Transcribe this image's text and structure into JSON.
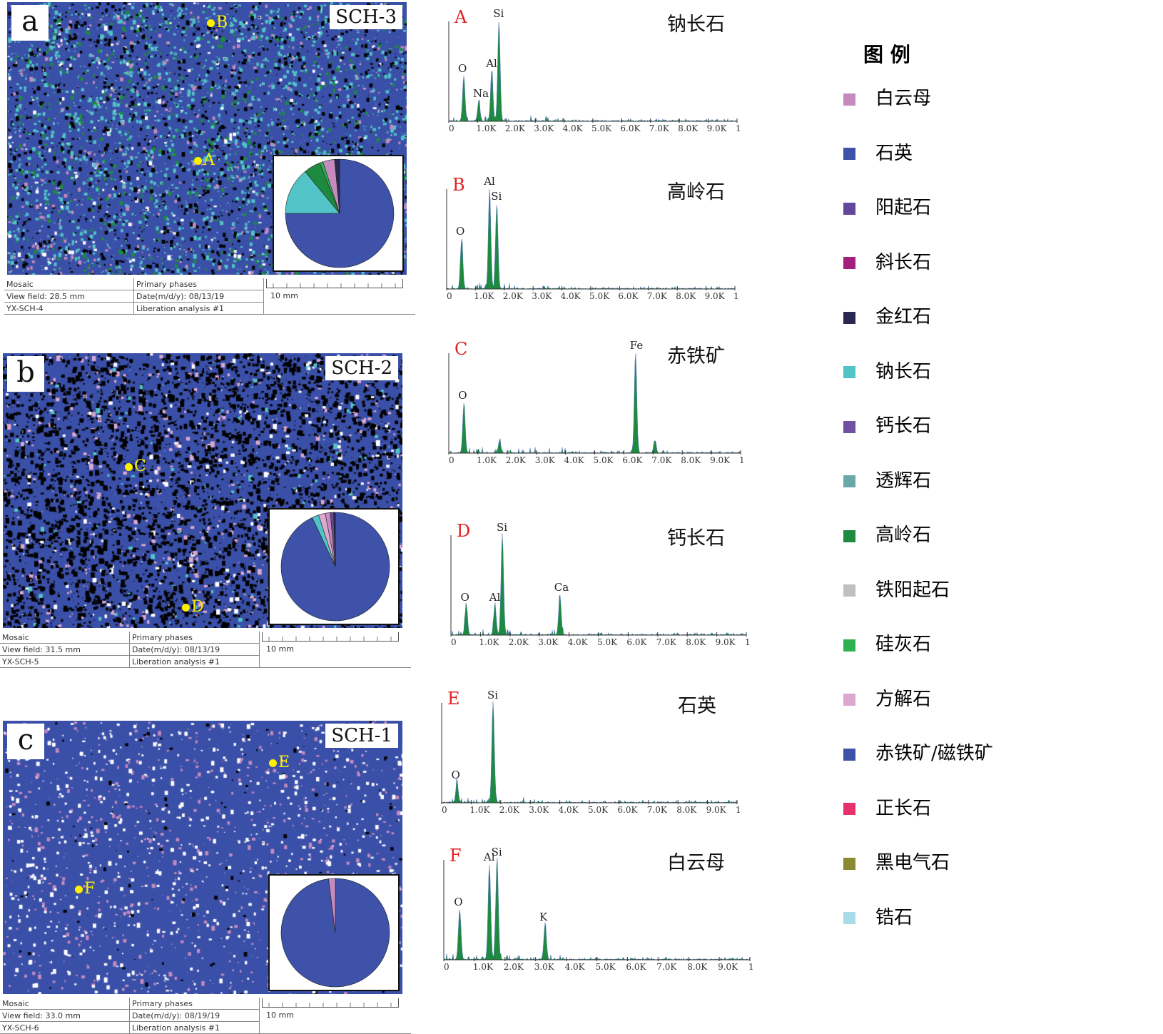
{
  "panels": [
    {
      "label": "a",
      "sample": "SCH-3",
      "points": [
        "B",
        "A"
      ],
      "info": {
        "mosaic": "Mosaic",
        "view_field": "View field: 28.5 mm",
        "id": "YX-SCH-4",
        "phases": "Primary phases",
        "date": "Date(m/d/y): 08/13/19",
        "analysis": "Liberation analysis #1",
        "scale": "10 mm"
      }
    },
    {
      "label": "b",
      "sample": "SCH-2",
      "points": [
        "C",
        "D"
      ],
      "info": {
        "mosaic": "Mosaic",
        "view_field": "View field: 31.5 mm",
        "id": "YX-SCH-5",
        "phases": "Primary phases",
        "date": "Date(m/d/y): 08/13/19",
        "analysis": "Liberation analysis #1",
        "scale": "10 mm"
      }
    },
    {
      "label": "c",
      "sample": "SCH-1",
      "points": [
        "E",
        "F"
      ],
      "info": {
        "mosaic": "Mosaic",
        "view_field": "View field: 33.0 mm",
        "id": "YX-SCH-6",
        "phases": "Primary phases",
        "date": "Date(m/d/y): 08/19/19",
        "analysis": "Liberation analysis #1",
        "scale": "10 mm"
      }
    }
  ],
  "legend": {
    "title": "图 例",
    "items": [
      {
        "name": "白云母",
        "color": "#c58bbf"
      },
      {
        "name": "石英",
        "color": "#3d52a8"
      },
      {
        "name": "阳起石",
        "color": "#62479c"
      },
      {
        "name": "斜长石",
        "color": "#a3207f"
      },
      {
        "name": "金红石",
        "color": "#2a2850"
      },
      {
        "name": "钠长石",
        "color": "#52c4c8"
      },
      {
        "name": "钙长石",
        "color": "#7050a0"
      },
      {
        "name": "透辉石",
        "color": "#6aa8a8"
      },
      {
        "name": "高岭石",
        "color": "#1e8a40"
      },
      {
        "name": "铁阳起石",
        "color": "#c0c0c0"
      },
      {
        "name": "硅灰石",
        "color": "#30b050"
      },
      {
        "name": "方解石",
        "color": "#dca8d0"
      },
      {
        "name": "赤铁矿/磁铁矿",
        "color": "#3d52a8"
      },
      {
        "name": "正长石",
        "color": "#e8306a"
      },
      {
        "name": "黑电气石",
        "color": "#8a8a30"
      },
      {
        "name": "锆石",
        "color": "#a8dce8"
      }
    ]
  },
  "chart_data": [
    {
      "type": "pie",
      "title": "SCH-3",
      "slices": [
        {
          "name": "石英",
          "value": 75
        },
        {
          "name": "钠长石",
          "value": 14
        },
        {
          "name": "高岭石",
          "value": 5
        },
        {
          "name": "硅灰石",
          "value": 1
        },
        {
          "name": "白云母",
          "value": 3.5
        },
        {
          "name": "金红石",
          "value": 1.5
        }
      ]
    },
    {
      "type": "pie",
      "title": "SCH-2",
      "slices": [
        {
          "name": "石英",
          "value": 93
        },
        {
          "name": "钠长石",
          "value": 2
        },
        {
          "name": "方解石",
          "value": 2
        },
        {
          "name": "白云母",
          "value": 1.5
        },
        {
          "name": "阳起石",
          "value": 1
        },
        {
          "name": "金红石",
          "value": 0.5
        }
      ]
    },
    {
      "type": "pie",
      "title": "SCH-1",
      "slices": [
        {
          "name": "石英",
          "value": 98
        },
        {
          "name": "白云母",
          "value": 2
        }
      ]
    },
    {
      "type": "area",
      "label": "A",
      "mineral": "钠长石",
      "xlim": [
        0,
        10
      ],
      "xticks": [
        "0",
        "1.0K",
        "2.0K",
        "3.0K",
        "4.0K",
        "5.0K",
        "6.0K",
        "7.0K",
        "8.0K",
        "9.0K",
        "1"
      ],
      "peaks": [
        {
          "el": "O",
          "keV": 0.52,
          "h": 0.45
        },
        {
          "el": "Na",
          "keV": 1.04,
          "h": 0.2
        },
        {
          "el": "Al",
          "keV": 1.49,
          "h": 0.5
        },
        {
          "el": "Si",
          "keV": 1.74,
          "h": 1.0
        }
      ]
    },
    {
      "type": "area",
      "label": "B",
      "mineral": "高岭石",
      "xlim": [
        0,
        10
      ],
      "xticks": [
        "0",
        "1.0K",
        "2.0K",
        "3.0K",
        "4.0K",
        "5.0K",
        "6.0K",
        "7.0K",
        "8.0K",
        "9.0K",
        "1"
      ],
      "peaks": [
        {
          "el": "O",
          "keV": 0.52,
          "h": 0.5
        },
        {
          "el": "Al",
          "keV": 1.49,
          "h": 1.0
        },
        {
          "el": "Si",
          "keV": 1.74,
          "h": 0.85
        }
      ]
    },
    {
      "type": "area",
      "label": "C",
      "mineral": "赤铁矿",
      "xlim": [
        0,
        10
      ],
      "xticks": [
        "0",
        "1.0K",
        "2.0K",
        "3.0K",
        "4.0K",
        "5.0K",
        "6.0K",
        "7.0K",
        "8.0K",
        "9.0K",
        "1"
      ],
      "peaks": [
        {
          "el": "O",
          "keV": 0.52,
          "h": 0.5
        },
        {
          "el": "",
          "keV": 1.74,
          "h": 0.12
        },
        {
          "el": "Fe",
          "keV": 6.4,
          "h": 1.0
        },
        {
          "el": "",
          "keV": 7.06,
          "h": 0.12
        }
      ]
    },
    {
      "type": "area",
      "label": "D",
      "mineral": "钙长石",
      "xlim": [
        0,
        10
      ],
      "xticks": [
        "0",
        "1.0K",
        "2.0K",
        "3.0K",
        "4.0K",
        "5.0K",
        "6.0K",
        "7.0K",
        "8.0K",
        "9.0K",
        "1"
      ],
      "peaks": [
        {
          "el": "O",
          "keV": 0.52,
          "h": 0.3
        },
        {
          "el": "Al",
          "keV": 1.49,
          "h": 0.3
        },
        {
          "el": "Si",
          "keV": 1.74,
          "h": 1.0
        },
        {
          "el": "Ca",
          "keV": 3.69,
          "h": 0.4
        }
      ]
    },
    {
      "type": "area",
      "label": "E",
      "mineral": "石英",
      "xlim": [
        0,
        10
      ],
      "xticks": [
        "0",
        "1.0K",
        "2.0K",
        "3.0K",
        "4.0K",
        "5.0K",
        "6.0K",
        "7.0K",
        "8.0K",
        "9.0K",
        "1"
      ],
      "peaks": [
        {
          "el": "O",
          "keV": 0.52,
          "h": 0.2
        },
        {
          "el": "Si",
          "keV": 1.74,
          "h": 1.0
        }
      ]
    },
    {
      "type": "area",
      "label": "F",
      "mineral": "白云母",
      "xlim": [
        0,
        10
      ],
      "xticks": [
        "0",
        "1.0K",
        "2.0K",
        "3.0K",
        "4.0K",
        "5.0K",
        "6.0K",
        "7.0K",
        "8.0K",
        "9.0K",
        "1"
      ],
      "peaks": [
        {
          "el": "O",
          "keV": 0.52,
          "h": 0.5
        },
        {
          "el": "Al",
          "keV": 1.49,
          "h": 0.95
        },
        {
          "el": "Si",
          "keV": 1.74,
          "h": 1.0
        },
        {
          "el": "K",
          "keV": 3.31,
          "h": 0.35
        }
      ]
    }
  ]
}
